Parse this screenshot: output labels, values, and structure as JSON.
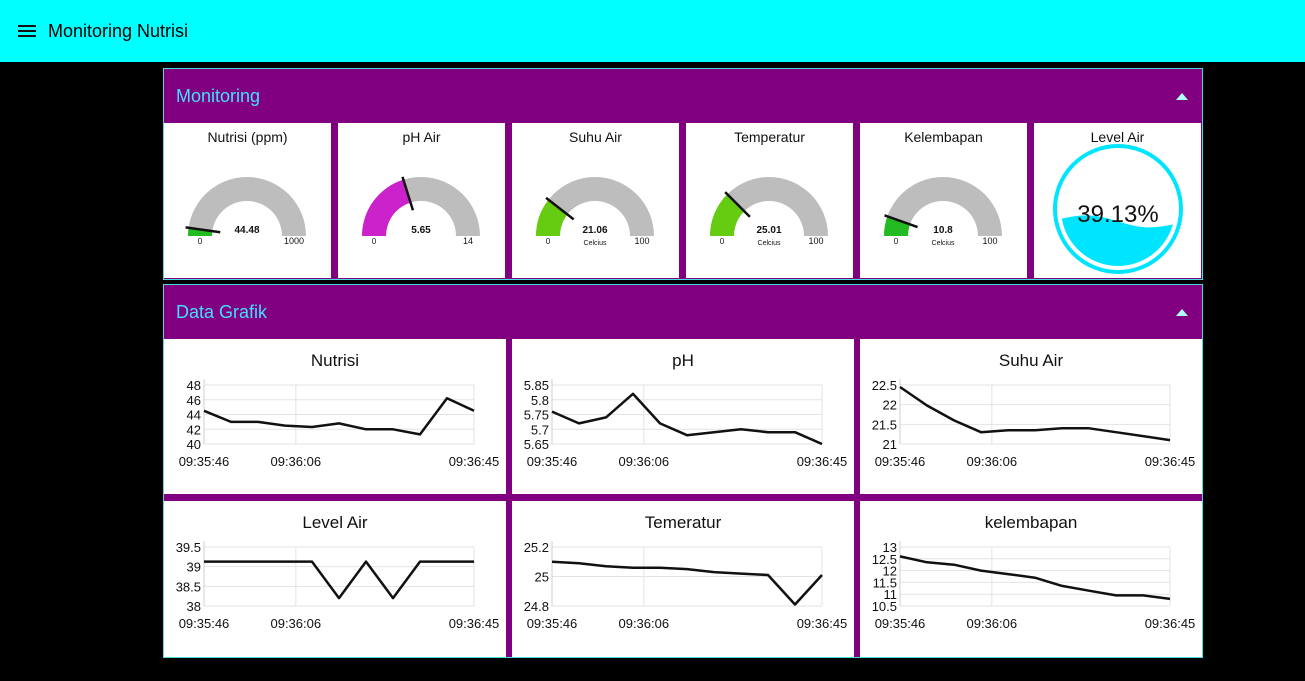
{
  "app": {
    "title": "Monitoring Nutrisi"
  },
  "groups": [
    {
      "title": "Monitoring"
    },
    {
      "title": "Data Grafik"
    }
  ],
  "gauges": [
    {
      "title": "Nutrisi (ppm)",
      "value": 44.48,
      "min": 0,
      "max": 1000,
      "value_label": "44.48",
      "min_label": "0",
      "max_label": "1000",
      "units": "",
      "color": "#22bb22"
    },
    {
      "title": "pH Air",
      "value": 5.65,
      "min": 0,
      "max": 14,
      "value_label": "5.65",
      "min_label": "0",
      "max_label": "14",
      "units": "",
      "color": "#cc22cc"
    },
    {
      "title": "Suhu Air",
      "value": 21.06,
      "min": 0,
      "max": 100,
      "value_label": "21.06",
      "min_label": "0",
      "max_label": "100",
      "units": "Celcius",
      "color": "#66cc11"
    },
    {
      "title": "Temperatur",
      "value": 25.01,
      "min": 0,
      "max": 100,
      "value_label": "25.01",
      "min_label": "0",
      "max_label": "100",
      "units": "Celcius",
      "color": "#66cc11"
    },
    {
      "title": "Kelembapan",
      "value": 10.8,
      "min": 0,
      "max": 100,
      "value_label": "10.8",
      "min_label": "0",
      "max_label": "100",
      "units": "Celcius",
      "color": "#22bb22"
    }
  ],
  "level_gauge": {
    "title": "Level Air",
    "value": 39.13,
    "value_label": "39.13%",
    "color": "#00e5ff"
  },
  "chart_data": [
    {
      "type": "line",
      "title": "Nutrisi",
      "x_ticks": [
        "09:35:46",
        "09:36:06",
        "09:36:45"
      ],
      "y_ticks": [
        "40",
        "42",
        "44",
        "46",
        "48"
      ],
      "ylim": [
        40,
        48
      ],
      "values": [
        44.5,
        43,
        43,
        42.5,
        42.3,
        42.8,
        42,
        42,
        41.3,
        46.2,
        44.5
      ],
      "grid": true
    },
    {
      "type": "line",
      "title": "pH",
      "x_ticks": [
        "09:35:46",
        "09:36:06",
        "09:36:45"
      ],
      "y_ticks": [
        "5.65",
        "5.7",
        "5.75",
        "5.8",
        "5.85"
      ],
      "ylim": [
        5.65,
        5.85
      ],
      "values": [
        5.76,
        5.72,
        5.74,
        5.82,
        5.72,
        5.68,
        5.69,
        5.7,
        5.69,
        5.69,
        5.65
      ],
      "grid": true
    },
    {
      "type": "line",
      "title": "Suhu Air",
      "x_ticks": [
        "09:35:46",
        "09:36:06",
        "09:36:45"
      ],
      "y_ticks": [
        "21",
        "21.5",
        "22",
        "22.5"
      ],
      "ylim": [
        21,
        22.5
      ],
      "values": [
        22.45,
        21.98,
        21.6,
        21.3,
        21.35,
        21.35,
        21.4,
        21.4,
        21.3,
        21.2,
        21.1
      ],
      "grid": true
    },
    {
      "type": "line",
      "title": "Level Air",
      "x_ticks": [
        "09:35:46",
        "09:36:06",
        "09:36:45"
      ],
      "y_ticks": [
        "38",
        "38.5",
        "39",
        "39.5"
      ],
      "ylim": [
        38,
        39.5
      ],
      "values": [
        39.13,
        39.13,
        39.13,
        39.13,
        39.13,
        38.2,
        39.13,
        38.2,
        39.13,
        39.13,
        39.13
      ],
      "grid": true
    },
    {
      "type": "line",
      "title": "Temeratur",
      "x_ticks": [
        "09:35:46",
        "09:36:06",
        "09:36:45"
      ],
      "y_ticks": [
        "24.8",
        "25",
        "25.2"
      ],
      "ylim": [
        24.8,
        25.2
      ],
      "values": [
        25.1,
        25.09,
        25.07,
        25.06,
        25.06,
        25.05,
        25.03,
        25.02,
        25.01,
        24.81,
        25.01
      ],
      "grid": true
    },
    {
      "type": "line",
      "title": "kelembapan",
      "x_ticks": [
        "09:35:46",
        "09:36:06",
        "09:36:45"
      ],
      "y_ticks": [
        "10.5",
        "11",
        "11.5",
        "12",
        "12.5",
        "13"
      ],
      "ylim": [
        10.5,
        13
      ],
      "values": [
        12.6,
        12.35,
        12.25,
        12.0,
        11.85,
        11.7,
        11.35,
        11.15,
        10.95,
        10.95,
        10.8
      ],
      "grid": true
    }
  ]
}
